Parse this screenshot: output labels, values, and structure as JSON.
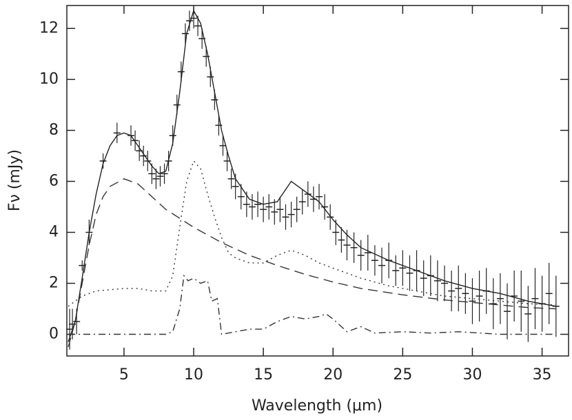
{
  "chart_data": {
    "type": "line",
    "xlabel": "Wavelength (μm)",
    "ylabel": "Fν (mJy)",
    "xlim": [
      0.9,
      36.9
    ],
    "ylim": [
      -0.85,
      12.9
    ],
    "xticks": [
      5,
      10,
      15,
      20,
      25,
      30,
      35
    ],
    "yticks": [
      0,
      2,
      4,
      6,
      8,
      10,
      12
    ],
    "series": [
      {
        "type": "errorbar",
        "color": "#222",
        "x": [
          1.1,
          1.3,
          1.6,
          2,
          2.5,
          3.5,
          4.5,
          5.5,
          5.8,
          6.1,
          6.4,
          6.7,
          7,
          7.3,
          7.6,
          7.9,
          8.2,
          8.5,
          8.8,
          9.1,
          9.4,
          9.7,
          10,
          10.3,
          10.6,
          10.9,
          11.2,
          11.5,
          11.8,
          12.1,
          12.4,
          12.7,
          13,
          13.4,
          13.8,
          14.2,
          14.6,
          15,
          15.4,
          15.8,
          16.2,
          16.6,
          17,
          17.4,
          17.8,
          18.2,
          18.6,
          19,
          19.4,
          19.8,
          20.2,
          20.6,
          21,
          21.5,
          22,
          22.5,
          23,
          23.5,
          24,
          24.5,
          25,
          25.5,
          26,
          26.5,
          27,
          27.5,
          28,
          28.5,
          29,
          29.5,
          30,
          30.5,
          31,
          31.5,
          32,
          32.5,
          33,
          33.5,
          34,
          34.5,
          35,
          35.5,
          36
        ],
        "values": [
          0.2,
          0.4,
          0.5,
          2.7,
          4.0,
          6.8,
          7.9,
          7.8,
          7.6,
          7.2,
          7.0,
          6.8,
          6.3,
          6.1,
          6.2,
          6.3,
          6.8,
          7.8,
          9.0,
          10.3,
          11.8,
          12.3,
          12.4,
          12.1,
          11.6,
          10.9,
          10.1,
          9.2,
          8.2,
          7.4,
          6.8,
          6.1,
          5.8,
          5.4,
          5.1,
          5.0,
          5.1,
          4.9,
          5.0,
          4.8,
          4.9,
          4.6,
          4.7,
          4.9,
          5.2,
          5.5,
          5.3,
          5.4,
          5.0,
          4.6,
          4.0,
          3.7,
          3.5,
          3.4,
          3.1,
          3.2,
          2.9,
          2.7,
          2.9,
          2.5,
          2.6,
          2.4,
          2.5,
          2.2,
          2.3,
          2.1,
          2.0,
          1.7,
          1.8,
          1.6,
          1.3,
          1.5,
          1.7,
          1.2,
          1.4,
          0.9,
          1.5,
          1.3,
          0.8,
          1.4,
          1.2,
          1.6,
          1.1
        ],
        "errors": [
          0.8,
          0.6,
          0.5,
          0.2,
          0.5,
          0.3,
          0.4,
          0.4,
          0.4,
          0.4,
          0.4,
          0.4,
          0.4,
          0.4,
          0.4,
          0.4,
          0.4,
          0.4,
          0.4,
          0.4,
          0.4,
          0.4,
          0.4,
          0.4,
          0.4,
          0.4,
          0.4,
          0.4,
          0.4,
          0.4,
          0.4,
          0.4,
          0.5,
          0.5,
          0.5,
          0.5,
          0.5,
          0.5,
          0.5,
          0.5,
          0.5,
          0.5,
          0.5,
          0.5,
          0.5,
          0.5,
          0.5,
          0.5,
          0.5,
          0.5,
          0.5,
          0.5,
          0.6,
          0.6,
          0.6,
          0.7,
          0.6,
          0.7,
          0.7,
          0.6,
          0.7,
          0.7,
          0.8,
          0.7,
          0.8,
          0.8,
          0.7,
          0.8,
          0.9,
          0.8,
          0.9,
          1.0,
          0.9,
          1.0,
          1.0,
          1.1,
          1.0,
          1.2,
          1.1,
          1.2,
          1.1,
          1.2,
          1.2
        ]
      },
      {
        "type": "line",
        "color": "#222",
        "style": "solid",
        "x": [
          1,
          1.5,
          2,
          2.5,
          3,
          3.5,
          4,
          4.5,
          5,
          5.5,
          6,
          6.5,
          7,
          7.5,
          8,
          8.5,
          9,
          9.5,
          10,
          10.5,
          11,
          11.5,
          12,
          12.5,
          13,
          14,
          15,
          16,
          17,
          18,
          19,
          20,
          21,
          22,
          24,
          26,
          28,
          30,
          32,
          34,
          36
        ],
        "values": [
          -0.3,
          0.5,
          2.2,
          4,
          5.5,
          6.7,
          7.4,
          7.8,
          7.9,
          7.8,
          7.4,
          7,
          6.6,
          6.3,
          6.4,
          7.5,
          9.5,
          11.8,
          12.7,
          12.2,
          11,
          9.5,
          8,
          7,
          6.1,
          5.3,
          5.1,
          5.2,
          6,
          5.6,
          5.2,
          4.5,
          3.9,
          3.4,
          2.9,
          2.5,
          2.1,
          1.8,
          1.6,
          1.3,
          1.1
        ]
      },
      {
        "type": "line",
        "color": "#333",
        "style": "dashed",
        "x": [
          1,
          1.5,
          2,
          2.5,
          3,
          3.5,
          4,
          5,
          6,
          7,
          8,
          10,
          12,
          14,
          16,
          18,
          20,
          22,
          25,
          28,
          31,
          34,
          36
        ],
        "values": [
          -0.5,
          0.5,
          2,
          3.5,
          4.7,
          5.4,
          5.8,
          6.1,
          5.9,
          5.4,
          4.9,
          4.2,
          3.6,
          3.1,
          2.7,
          2.35,
          2.05,
          1.8,
          1.55,
          1.35,
          1.2,
          1.05,
          1.0
        ]
      },
      {
        "type": "line",
        "color": "#333",
        "style": "dotted",
        "x": [
          1,
          2,
          3,
          4,
          5,
          6,
          7,
          8,
          8.5,
          9,
          9.5,
          10,
          10.5,
          11,
          11.5,
          12,
          12.5,
          13,
          14,
          15,
          16,
          17,
          18,
          19,
          20,
          22,
          24,
          26,
          28,
          30,
          32,
          34,
          36
        ],
        "values": [
          1.1,
          1.5,
          1.7,
          1.75,
          1.8,
          1.8,
          1.7,
          1.7,
          2.3,
          4.2,
          6,
          6.8,
          6.5,
          5.5,
          4.6,
          3.8,
          3.2,
          3.0,
          2.8,
          2.8,
          3.1,
          3.3,
          3.1,
          2.8,
          2.6,
          2.2,
          1.9,
          1.7,
          1.5,
          1.4,
          1.3,
          1.2,
          1.15
        ]
      },
      {
        "type": "line",
        "color": "#333",
        "style": "dashdot",
        "x": [
          1,
          3,
          5,
          7,
          8,
          8.5,
          9,
          9.3,
          9.6,
          10,
          10.5,
          11,
          11.3,
          11.7,
          12,
          12.5,
          14,
          15,
          16,
          17,
          18,
          19,
          19.5,
          20,
          21,
          22,
          23,
          25,
          27,
          29,
          32,
          36
        ],
        "values": [
          0,
          0,
          0,
          0,
          0,
          0.1,
          1,
          2.3,
          2.1,
          2.2,
          2.0,
          2.1,
          1.3,
          1.4,
          0,
          0.05,
          0.2,
          0.2,
          0.5,
          0.7,
          0.6,
          0.7,
          0.8,
          0.6,
          0.1,
          0.3,
          0.05,
          0.1,
          0.05,
          0.1,
          0,
          0
        ]
      }
    ]
  }
}
